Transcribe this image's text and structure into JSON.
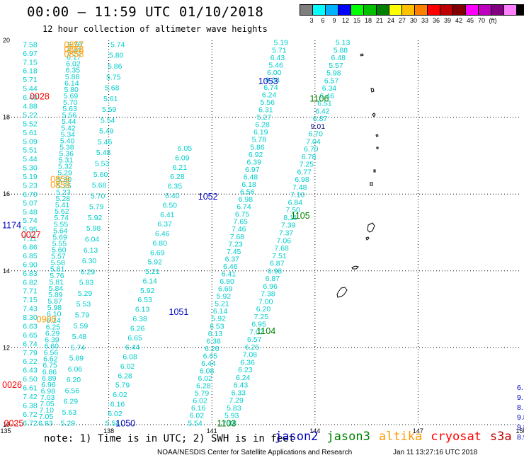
{
  "header": {
    "title": "00:00 – 11:59 UTC 01/10/2018",
    "subtitle": "12 hour collection of altimeter wave heights"
  },
  "colorbar": {
    "colors": [
      "#7f7f7f",
      "#00ffff",
      "#00b2ff",
      "#0000ff",
      "#00ff00",
      "#00c000",
      "#008000",
      "#ffff00",
      "#ffc000",
      "#ff8000",
      "#ff0000",
      "#c00000",
      "#800000",
      "#ff00ff",
      "#c000c0",
      "#800080",
      "#ff80ff",
      "#000000"
    ],
    "labels": [
      "3",
      "6",
      "9",
      "12",
      "15",
      "18",
      "21",
      "24",
      "27",
      "30",
      "33",
      "36",
      "39",
      "42",
      "45",
      "70",
      "(ft)"
    ]
  },
  "map": {
    "lon_ticks": [
      "135",
      "138",
      "141",
      "144",
      "147",
      "150"
    ],
    "lat_ticks": [
      "20",
      "18",
      "16",
      "14",
      "12",
      "10"
    ],
    "grid_lons": [
      138,
      141,
      144,
      147
    ],
    "grid_lats": [
      18,
      16,
      14,
      12
    ],
    "lon_range": [
      135,
      150
    ],
    "lat_range": [
      10,
      20
    ]
  },
  "satellite_colors": {
    "jason2": "#0000c0",
    "jason3": "#008000",
    "altika": "#ff9900",
    "cryosat": "#ff0000",
    "s3a": "#c00000",
    "swh": "#00cccc",
    "swh_dark": "#000080"
  },
  "tracks": [
    {
      "name": "track-left-1",
      "start": [
        135.5,
        19.9
      ],
      "end": [
        135.5,
        10.05
      ],
      "values": [
        "7.58",
        "6.97",
        "7.15",
        "6.18",
        "5.71",
        "5.44",
        "6.40",
        "4.88",
        "5.22",
        "5.52",
        "5.61",
        "5.09",
        "5.51",
        "5.44",
        "5.30",
        "5.19",
        "5.23",
        "6.70",
        "5.07",
        "5.48",
        "5.74",
        "5.95",
        "7.11",
        "6.86",
        "6.85",
        "6.90",
        "6.83",
        "6.82",
        "7.71",
        "7.15",
        "7.43",
        "8.30",
        "6.63",
        "6.65",
        "6.74",
        "7.79",
        "6.22",
        "6.43",
        "6.50",
        "6.61",
        "7.42",
        "6.38",
        "6.72",
        "6.72"
      ]
    },
    {
      "name": "track-a",
      "start": [
        136.8,
        19.9
      ],
      "end": [
        135.95,
        10.05
      ],
      "values": [
        "5.78",
        "6.47",
        "6.17",
        "6.02",
        "6.35",
        "5.88",
        "6.14",
        "5.80",
        "5.69",
        "5.70",
        "5.63",
        "5.56",
        "5.44",
        "5.42",
        "5.34",
        "5.40",
        "5.38",
        "5.36",
        "5.31",
        "5.32",
        "5.29",
        "5.30",
        "5.25",
        "5.23",
        "5.28",
        "5.41",
        "5.62",
        "5.74",
        "5.55",
        "5.64",
        "5.69",
        "5.55",
        "5.60",
        "5.57",
        "5.58",
        "5.81",
        "5.76",
        "5.81",
        "5.84",
        "5.89",
        "5.87",
        "5.98",
        "6.10",
        "6.14",
        "6.25",
        "6.29",
        "6.39",
        "6.60",
        "6.56",
        "6.62",
        "6.75",
        "6.86",
        "6.89",
        "6.96",
        "6.98",
        "7.03",
        "7.05",
        "7.10",
        "7.05",
        "6.93"
      ]
    },
    {
      "name": "track-b",
      "start": [
        138.05,
        19.9
      ],
      "end": [
        136.6,
        10.05
      ],
      "values": [
        "5.74",
        "5.80",
        "5.86",
        "5.75",
        "5.68",
        "5.61",
        "5.59",
        "5.54",
        "5.49",
        "5.46",
        "5.48",
        "5.53",
        "5.60",
        "5.68",
        "5.70",
        "5.79",
        "5.92",
        "5.98",
        "6.04",
        "6.13",
        "6.30",
        "6.29",
        "5.83",
        "5.29",
        "5.53",
        "5.79",
        "5.59",
        "5.48",
        "5.74",
        "5.89",
        "6.06",
        "6.20",
        "6.56",
        "6.29",
        "5.63",
        "5.29"
      ]
    },
    {
      "name": "track-c",
      "start": [
        140.0,
        17.2
      ],
      "end": [
        137.9,
        10.05
      ],
      "values": [
        "6.05",
        "6.09",
        "6.21",
        "6.28",
        "6.35",
        "6.40",
        "6.50",
        "6.41",
        "6.37",
        "6.46",
        "6.80",
        "6.69",
        "5.92",
        "5.21",
        "6.14",
        "5.92",
        "6.53",
        "6.13",
        "6.38",
        "6.26",
        "6.65",
        "6.44",
        "6.08",
        "6.02",
        "6.28",
        "5.79",
        "6.02",
        "6.16",
        "6.02",
        "5.54"
      ]
    },
    {
      "name": "track-d",
      "start": [
        142.8,
        19.95
      ],
      "end": [
        140.3,
        10.05
      ],
      "values": [
        "5.19",
        "5.71",
        "6.43",
        "5.46",
        "6.00",
        "6.04",
        "6.74",
        "6.24",
        "5.56",
        "6.31",
        "5.27",
        "6.28",
        "6.19",
        "5.78",
        "5.86",
        "6.92",
        "6.39",
        "6.97",
        "6.48",
        "6.18",
        "6.56",
        "6.98",
        "6.74",
        "6.75",
        "7.65",
        "7.46",
        "7.68",
        "7.23",
        "7.45",
        "6.37",
        "6.46",
        "6.41",
        "6.80",
        "6.69",
        "5.92",
        "5.21",
        "6.14",
        "5.92",
        "6.53",
        "6.13",
        "6.38",
        "6.26",
        "6.65",
        "6.44",
        "6.08",
        "6.02",
        "6.28",
        "5.79",
        "6.02",
        "6.16",
        "6.02",
        "5.54"
      ]
    },
    {
      "name": "track-e",
      "start": [
        144.6,
        19.95
      ],
      "end": [
        141.3,
        10.05
      ],
      "values": [
        "5.13",
        "5.88",
        "6.48",
        "5.57",
        "5.98",
        "6.57",
        "6.34",
        "6.46",
        "6.51",
        "6.42",
        "6.87",
        "9.01",
        "6.70",
        "7.04",
        "6.70",
        "6.78",
        "7.25",
        "6.77",
        "6.98",
        "7.48",
        "7.10",
        "6.84",
        "7.50",
        "8.11",
        "7.39",
        "7.37",
        "7.06",
        "7.68",
        "7.51",
        "6.87",
        "6.98",
        "6.87",
        "6.96",
        "7.38",
        "7.00",
        "6.20",
        "7.25",
        "6.95",
        "7.07",
        "6.57",
        "6.25",
        "7.08",
        "6.36",
        "6.23",
        "6.24",
        "6.43",
        "6.33",
        "7.29",
        "5.83",
        "5.93",
        "7.06"
      ]
    }
  ],
  "time_labels": [
    {
      "text": "0857",
      "lon": 136.7,
      "lat": 19.9,
      "color": "altika"
    },
    {
      "text": "0858",
      "lon": 136.7,
      "lat": 19.78,
      "color": "altika"
    },
    {
      "text": "0858",
      "lon": 136.7,
      "lat": 19.66,
      "color": "altika"
    },
    {
      "text": "0028",
      "lon": 135.7,
      "lat": 18.55,
      "color": "cryosat"
    },
    {
      "text": "1053",
      "lon": 142.35,
      "lat": 18.95,
      "color": "jason2"
    },
    {
      "text": "1106",
      "lon": 143.85,
      "lat": 18.5,
      "color": "jason3"
    },
    {
      "text": "0859",
      "lon": 136.3,
      "lat": 16.4,
      "color": "altika"
    },
    {
      "text": "0859",
      "lon": 136.3,
      "lat": 16.25,
      "color": "altika"
    },
    {
      "text": "1052",
      "lon": 140.6,
      "lat": 15.95,
      "color": "jason2"
    },
    {
      "text": "1105",
      "lon": 143.3,
      "lat": 15.45,
      "color": "jason3"
    },
    {
      "text": "1174",
      "lon": 134.9,
      "lat": 15.2,
      "color": "jason2"
    },
    {
      "text": "0027",
      "lon": 135.45,
      "lat": 14.95,
      "color": "cryosat"
    },
    {
      "text": "1051",
      "lon": 139.75,
      "lat": 12.95,
      "color": "jason2"
    },
    {
      "text": "0900",
      "lon": 135.9,
      "lat": 12.75,
      "color": "altika"
    },
    {
      "text": "1104",
      "lon": 142.3,
      "lat": 12.45,
      "color": "jason3"
    },
    {
      "text": "0026",
      "lon": 134.9,
      "lat": 11.05,
      "color": "cryosat"
    },
    {
      "text": "0025",
      "lon": 134.95,
      "lat": 10.05,
      "color": "cryosat"
    },
    {
      "text": "1050",
      "lon": 138.2,
      "lat": 10.05,
      "color": "jason2"
    },
    {
      "text": "1103",
      "lon": 141.15,
      "lat": 10.05,
      "color": "jason3"
    }
  ],
  "edge_values": [
    "6.",
    "9.",
    "8.",
    "9.8",
    "9.8",
    "8.9"
  ],
  "note": "note: 1) Time is in UTC; 2) SWH is in feet",
  "legend": [
    {
      "name": "jason2",
      "color": "#0000c0"
    },
    {
      "name": "jason3",
      "color": "#008000"
    },
    {
      "name": "altika",
      "color": "#ff9900"
    },
    {
      "name": "cryosat",
      "color": "#ff0000"
    },
    {
      "name": "s3a",
      "color": "#c00000"
    }
  ],
  "footer": {
    "left": "NOAA/NESDIS Center for Satellite Applications and Research",
    "right": "Jan 11 13:27:16 UTC 2018"
  }
}
